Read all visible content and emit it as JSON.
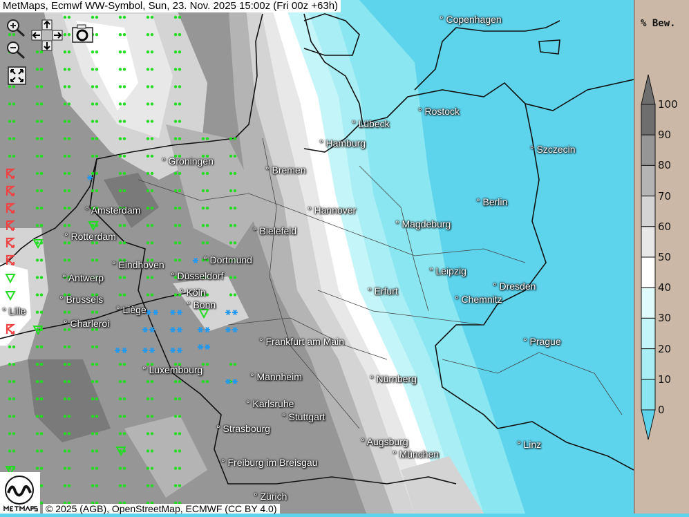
{
  "header": {
    "title": "MetMaps, Ecmwf WW-Symbol, Sun, 23. Nov. 2025 15:00z (Fri 00z +63h)"
  },
  "controls": {
    "zoom_in": "zoom-in-icon",
    "zoom_out": "zoom-out-icon",
    "pan": [
      "arrow-up-icon",
      "arrow-left-icon",
      "arrow-right-icon",
      "arrow-down-icon"
    ],
    "screenshot": "camera-icon",
    "fullscreen": "fullscreen-icon"
  },
  "legend": {
    "title": "% Bew.",
    "labels": [
      "100",
      "90",
      "80",
      "70",
      "60",
      "50",
      "40",
      "30",
      "20",
      "10",
      "0"
    ],
    "colors": [
      "#6e6e6e",
      "#6e6e6e",
      "#969696",
      "#b4b4b4",
      "#d4d4d4",
      "#e8e8e8",
      "#ffffff",
      "#e0fbfb",
      "#c4f5f8",
      "#a8eef4",
      "#8ae6f0",
      "#5dd3ec"
    ]
  },
  "cities": [
    "Copenhagen",
    "Rostock",
    "Lübeck",
    "Hamburg",
    "Szczecin",
    "Groningen",
    "Bremen",
    "Berlin",
    "Hannover",
    "Amsterdam",
    "Magdeburg",
    "Bielefeld",
    "Rotterdam",
    "Dortmund",
    "Eindhoven",
    "Leipzig",
    "Antwerp",
    "Düsseldorf",
    "Dresden",
    "Erfurt",
    "Köln",
    "Brussels",
    "Chemnitz",
    "Bonn",
    "Lille",
    "Liège",
    "Charleroi",
    "Frankfurt am Main",
    "Prague",
    "Luxembourg",
    "Mannheim",
    "Nürnberg",
    "Karlsruhe",
    "Stuttgart",
    "Strasbourg",
    "Augsburg",
    "München",
    "Linz",
    "Freiburg im Breisgau",
    "Zürich"
  ],
  "logo_text": "METMAPS",
  "footer": {
    "copyright": "© 2025 (AGB), OpenStreetMap, ECMWF (CC BY 4.0)"
  },
  "symbol_colors": {
    "drizzle": "#22dd22",
    "snow": "#2299ee",
    "thunder": "#ee4444"
  }
}
